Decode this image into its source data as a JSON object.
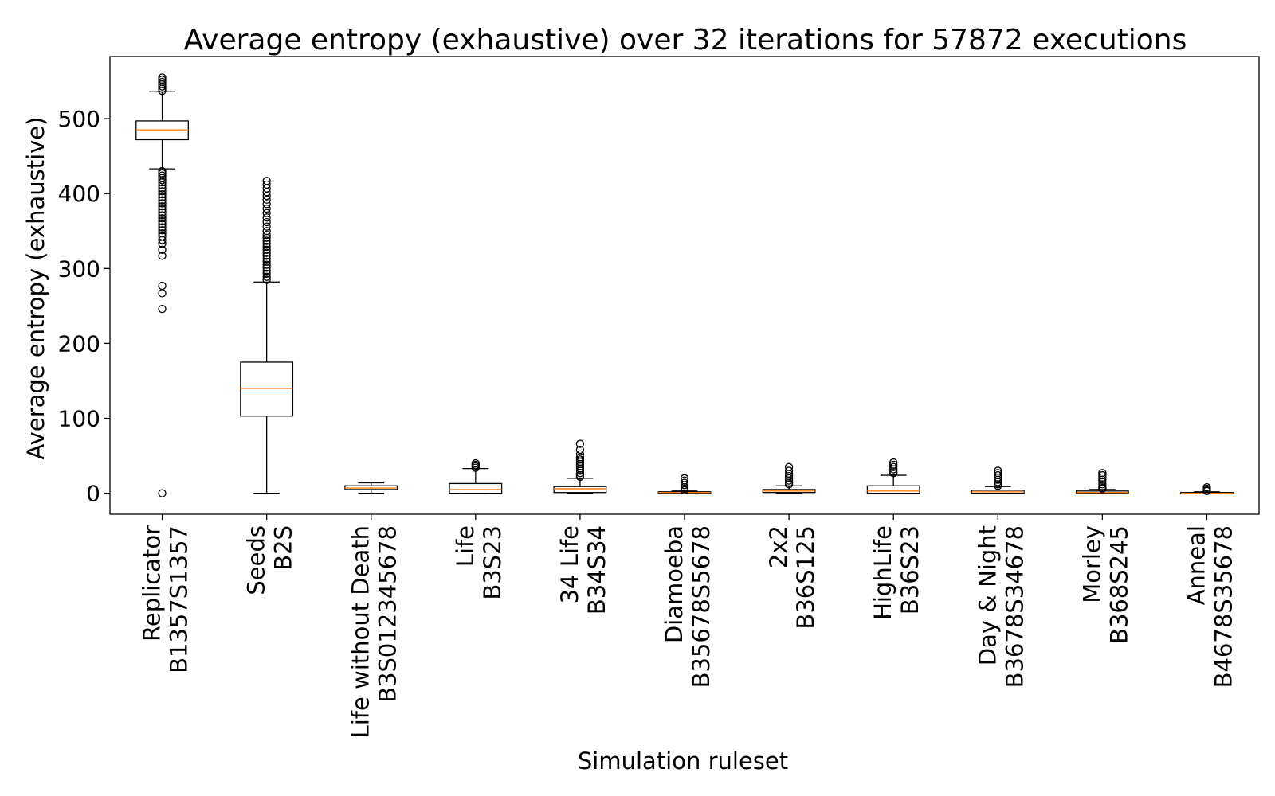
{
  "chart_data": {
    "type": "box",
    "title": "Average entropy (exhaustive) over 32 iterations for 57872 executions",
    "xlabel": "Simulation ruleset",
    "ylabel": "Average entropy (exhaustive)",
    "ylim": [
      -28,
      583
    ],
    "yticks": [
      0,
      100,
      200,
      300,
      400,
      500
    ],
    "grid": false,
    "colors": {
      "box": "#000000",
      "median": "#ff7f0e",
      "background": "#ffffff"
    },
    "categories": [
      {
        "name": "Replicator",
        "rule": "B1357S1357"
      },
      {
        "name": "Seeds",
        "rule": "B2S"
      },
      {
        "name": "Life without Death",
        "rule": "B3S012345678"
      },
      {
        "name": "Life",
        "rule": "B3S23"
      },
      {
        "name": "34 Life",
        "rule": "B34S34"
      },
      {
        "name": "Diamoeba",
        "rule": "B35678S5678"
      },
      {
        "name": "2x2",
        "rule": "B36S125"
      },
      {
        "name": "HighLife",
        "rule": "B36S23"
      },
      {
        "name": "Day & Night",
        "rule": "B3678S34678"
      },
      {
        "name": "Morley",
        "rule": "B368S245"
      },
      {
        "name": "Anneal",
        "rule": "B4678S35678"
      }
    ],
    "boxes": [
      {
        "whisker_low": 433,
        "q1": 472,
        "median": 485,
        "q3": 497,
        "whisker_high": 536,
        "outliers": [
          555,
          552,
          549,
          546,
          543,
          540,
          537,
          430,
          427,
          424,
          421,
          418,
          415,
          411,
          407,
          403,
          399,
          395,
          391,
          387,
          383,
          379,
          375,
          371,
          367,
          363,
          359,
          355,
          351,
          347,
          343,
          338,
          333,
          325,
          317,
          277,
          267,
          246,
          0
        ]
      },
      {
        "whisker_low": 0,
        "q1": 103,
        "median": 140,
        "q3": 175,
        "whisker_high": 282,
        "outliers": [
          417,
          412,
          407,
          402,
          397,
          392,
          386,
          380,
          374,
          368,
          362,
          356,
          350,
          345,
          341,
          337,
          333,
          329,
          325,
          321,
          317,
          313,
          309,
          305,
          301,
          297,
          293,
          289,
          285
        ]
      },
      {
        "whisker_low": 0,
        "q1": 5,
        "median": 7,
        "q3": 10,
        "whisker_high": 14,
        "outliers": []
      },
      {
        "whisker_low": 0,
        "q1": 0,
        "median": 5,
        "q3": 13,
        "whisker_high": 33,
        "outliers": [
          40,
          38,
          36,
          34
        ]
      },
      {
        "whisker_low": 0,
        "q1": 1,
        "median": 6,
        "q3": 9,
        "whisker_high": 20,
        "outliers": [
          66,
          58,
          52,
          48,
          45,
          42,
          39,
          36,
          33,
          30,
          27,
          24,
          22
        ]
      },
      {
        "whisker_low": 0,
        "q1": 0,
        "median": 1,
        "q3": 2,
        "whisker_high": 3,
        "outliers": [
          20,
          17,
          14,
          11,
          8,
          6,
          4
        ]
      },
      {
        "whisker_low": 0,
        "q1": 1,
        "median": 3,
        "q3": 5,
        "whisker_high": 10,
        "outliers": [
          35,
          30,
          26,
          23,
          20,
          17,
          14,
          12
        ]
      },
      {
        "whisker_low": 0,
        "q1": 0,
        "median": 3,
        "q3": 10,
        "whisker_high": 24,
        "outliers": [
          41,
          38,
          35,
          32,
          29,
          27
        ]
      },
      {
        "whisker_low": 0,
        "q1": 0,
        "median": 2,
        "q3": 4,
        "whisker_high": 9,
        "outliers": [
          30,
          27,
          24,
          21,
          18,
          15,
          12,
          10
        ]
      },
      {
        "whisker_low": 0,
        "q1": 0,
        "median": 1,
        "q3": 3,
        "whisker_high": 5,
        "outliers": [
          27,
          24,
          21,
          18,
          15,
          12,
          9,
          7,
          6
        ]
      },
      {
        "whisker_low": 0,
        "q1": 0,
        "median": 0,
        "q3": 1,
        "whisker_high": 2,
        "outliers": [
          8,
          6,
          4,
          3
        ]
      }
    ]
  }
}
